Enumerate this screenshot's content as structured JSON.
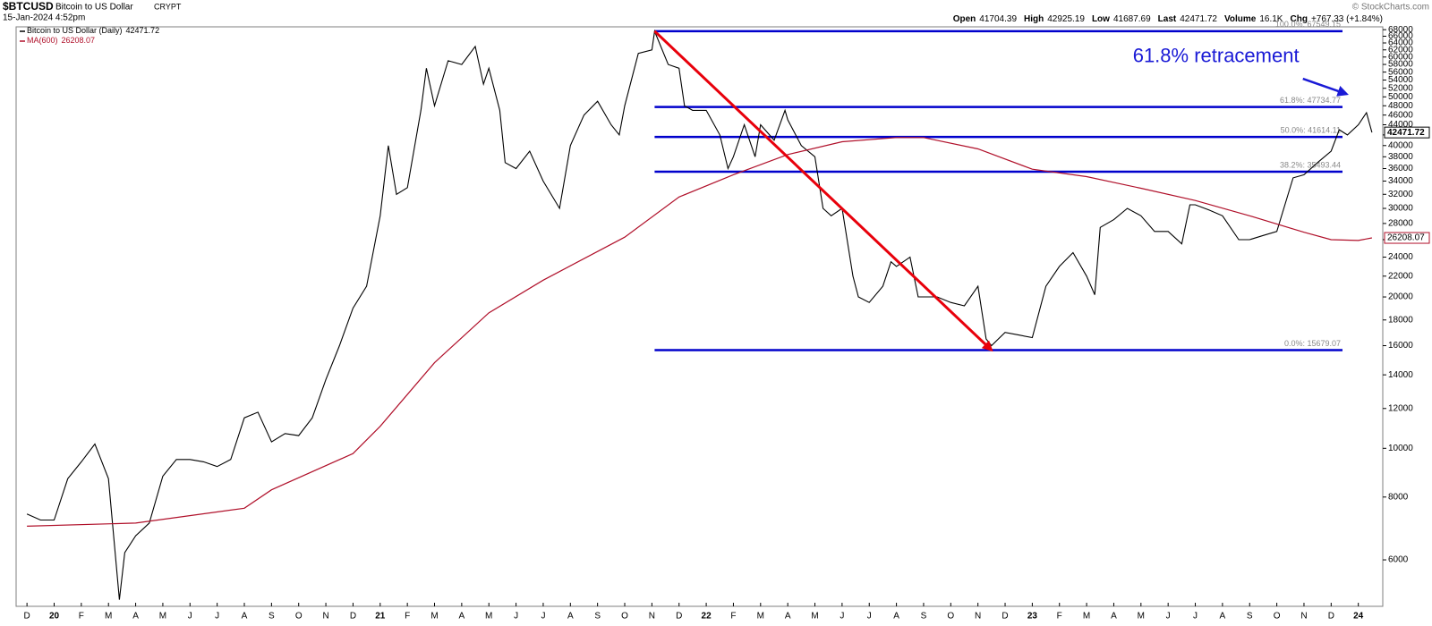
{
  "chart_data": {
    "type": "line",
    "symbol": "$BTCUSD",
    "title": "Bitcoin to US Dollar",
    "exchange": "CRYPT",
    "date": "15-Jan-2024 4:52pm",
    "credit": "© StockCharts.com",
    "quote": [
      {
        "label": "Open",
        "value": 41704.39
      },
      {
        "label": "High",
        "value": 42925.19
      },
      {
        "label": "Low",
        "value": 41687.69
      },
      {
        "label": "Last",
        "value": 42471.72
      },
      {
        "label": "Volume",
        "value": "16.1K"
      },
      {
        "label": "Chg",
        "value": "+767.33 (+1.84%)"
      }
    ],
    "log_scale": true,
    "grid": false,
    "legend": "top-left",
    "xlim": [
      -0.4,
      49.9
    ],
    "ylim": [
      4850,
      68900
    ],
    "xticks": [
      {
        "value": 0,
        "label": "D"
      },
      {
        "value": 1,
        "label": "20"
      },
      {
        "value": 2,
        "label": "F"
      },
      {
        "value": 3,
        "label": "M"
      },
      {
        "value": 4,
        "label": "A"
      },
      {
        "value": 5,
        "label": "M"
      },
      {
        "value": 6,
        "label": "J"
      },
      {
        "value": 7,
        "label": "J"
      },
      {
        "value": 8,
        "label": "A"
      },
      {
        "value": 9,
        "label": "S"
      },
      {
        "value": 10,
        "label": "O"
      },
      {
        "value": 11,
        "label": "N"
      },
      {
        "value": 12,
        "label": "D"
      },
      {
        "value": 13,
        "label": "21"
      },
      {
        "value": 14,
        "label": "F"
      },
      {
        "value": 15,
        "label": "M"
      },
      {
        "value": 16,
        "label": "A"
      },
      {
        "value": 17,
        "label": "M"
      },
      {
        "value": 18,
        "label": "J"
      },
      {
        "value": 19,
        "label": "J"
      },
      {
        "value": 20,
        "label": "A"
      },
      {
        "value": 21,
        "label": "S"
      },
      {
        "value": 22,
        "label": "O"
      },
      {
        "value": 23,
        "label": "N"
      },
      {
        "value": 24,
        "label": "D"
      },
      {
        "value": 25,
        "label": "22"
      },
      {
        "value": 26,
        "label": "F"
      },
      {
        "value": 27,
        "label": "M"
      },
      {
        "value": 28,
        "label": "A"
      },
      {
        "value": 29,
        "label": "M"
      },
      {
        "value": 30,
        "label": "J"
      },
      {
        "value": 31,
        "label": "J"
      },
      {
        "value": 32,
        "label": "A"
      },
      {
        "value": 33,
        "label": "S"
      },
      {
        "value": 34,
        "label": "O"
      },
      {
        "value": 35,
        "label": "N"
      },
      {
        "value": 36,
        "label": "D"
      },
      {
        "value": 37,
        "label": "23"
      },
      {
        "value": 38,
        "label": "F"
      },
      {
        "value": 39,
        "label": "M"
      },
      {
        "value": 40,
        "label": "A"
      },
      {
        "value": 41,
        "label": "M"
      },
      {
        "value": 42,
        "label": "J"
      },
      {
        "value": 43,
        "label": "J"
      },
      {
        "value": 44,
        "label": "A"
      },
      {
        "value": 45,
        "label": "S"
      },
      {
        "value": 46,
        "label": "O"
      },
      {
        "value": 47,
        "label": "N"
      },
      {
        "value": 48,
        "label": "D"
      },
      {
        "value": 49,
        "label": "24"
      }
    ],
    "yticks": [
      6000,
      8000,
      10000,
      12000,
      14000,
      16000,
      18000,
      20000,
      22000,
      24000,
      26000,
      28000,
      30000,
      32000,
      34000,
      36000,
      38000,
      40000,
      42000,
      44000,
      46000,
      48000,
      50000,
      52000,
      54000,
      56000,
      58000,
      60000,
      62000,
      64000,
      66000,
      68000
    ],
    "series": [
      {
        "name": "Bitcoin to US Dollar (Daily)",
        "color": "#000000",
        "x": [
          0,
          0.5,
          1,
          1.5,
          2,
          2.5,
          3,
          3.4,
          3.6,
          4,
          4.5,
          5,
          5.5,
          6,
          6.5,
          7,
          7.5,
          8,
          8.5,
          9,
          9.5,
          10,
          10.5,
          11,
          11.5,
          12,
          12.5,
          13,
          13.3,
          13.6,
          14,
          14.5,
          14.7,
          15,
          15.5,
          16,
          16.5,
          16.8,
          17,
          17.4,
          17.6,
          18,
          18.5,
          19,
          19.6,
          20,
          20.5,
          21,
          21.5,
          21.8,
          22,
          22.5,
          23,
          23.1,
          23.6,
          24,
          24.2,
          24.5,
          25,
          25.5,
          25.8,
          26,
          26.4,
          26.8,
          27,
          27.5,
          27.9,
          28,
          28.5,
          29,
          29.3,
          29.6,
          30,
          30.4,
          30.6,
          31,
          31.5,
          31.8,
          32,
          32.5,
          32.8,
          33,
          33.5,
          34,
          34.5,
          35,
          35.3,
          35.5,
          36,
          36.5,
          37,
          37.5,
          38,
          38.5,
          39,
          39.3,
          39.5,
          40,
          40.5,
          41,
          41.5,
          42,
          42.5,
          42.8,
          43,
          43.5,
          44,
          44.6,
          45,
          45.5,
          46,
          46.6,
          47,
          47.5,
          48,
          48.3,
          48.6,
          49,
          49.3,
          49.5
        ],
        "values": [
          7400,
          7200,
          7200,
          8700,
          9400,
          10200,
          8700,
          5000,
          6200,
          6700,
          7100,
          8800,
          9500,
          9500,
          9400,
          9200,
          9500,
          11500,
          11800,
          10300,
          10700,
          10600,
          11500,
          13700,
          16000,
          19000,
          21000,
          29000,
          40000,
          32000,
          33000,
          47000,
          57000,
          48000,
          59000,
          58000,
          63000,
          53000,
          57000,
          47000,
          37000,
          36000,
          39000,
          34000,
          30000,
          40000,
          46000,
          49000,
          44000,
          42000,
          48000,
          61000,
          62000,
          67500,
          58000,
          57000,
          48000,
          47000,
          47000,
          42000,
          36000,
          38000,
          44000,
          38000,
          44000,
          41000,
          47000,
          45000,
          40000,
          38000,
          30000,
          29000,
          30000,
          22000,
          20000,
          19500,
          21000,
          23500,
          23000,
          24000,
          20000,
          20000,
          20000,
          19500,
          19200,
          21000,
          16500,
          16000,
          17000,
          16800,
          16600,
          21000,
          23000,
          24500,
          22000,
          20200,
          27500,
          28500,
          30000,
          29000,
          27000,
          27000,
          25500,
          30500,
          30500,
          29800,
          29000,
          26000,
          26000,
          26500,
          27000,
          34500,
          35000,
          37000,
          39000,
          43000,
          42000,
          44000,
          46500,
          42471.72
        ]
      },
      {
        "name": "MA(600)",
        "color": "#b0102a",
        "x": [
          0,
          4,
          8,
          9,
          12,
          13,
          15,
          17,
          19,
          22,
          24,
          26,
          28,
          30,
          32,
          33,
          35,
          37,
          39,
          41,
          43,
          45,
          47,
          48,
          49,
          49.5
        ],
        "values": [
          7000,
          7100,
          7600,
          8270,
          9760,
          11060,
          14800,
          18600,
          21600,
          26300,
          31600,
          35000,
          38400,
          40700,
          41500,
          41500,
          39400,
          35900,
          34700,
          32900,
          31100,
          29000,
          26900,
          26000,
          25900,
          26208.07
        ]
      }
    ],
    "fib_color": "#0000cc",
    "fib_levels": [
      {
        "label": "100.0%: 67549.15",
        "value": 67549.15
      },
      {
        "label": "61.8%: 47734.77",
        "value": 47734.77
      },
      {
        "label": "50.0%: 41614.11",
        "value": 41614.11
      },
      {
        "label": "38.2%: 35493.44",
        "value": 35493.44
      },
      {
        "label": "0.0%: 15679.07",
        "value": 15679.07
      }
    ],
    "trend_arrow": {
      "color": "#e8000b",
      "x": [
        23.1,
        35.5
      ],
      "y": [
        67549.15,
        15679.07
      ]
    },
    "annotation": {
      "text": "61.8% retracement",
      "color": "#1a1ad6",
      "text_x": 40.7,
      "text_y": 60030,
      "x": [
        46.96,
        48.57
      ],
      "y": [
        54330,
        50640
      ]
    }
  }
}
